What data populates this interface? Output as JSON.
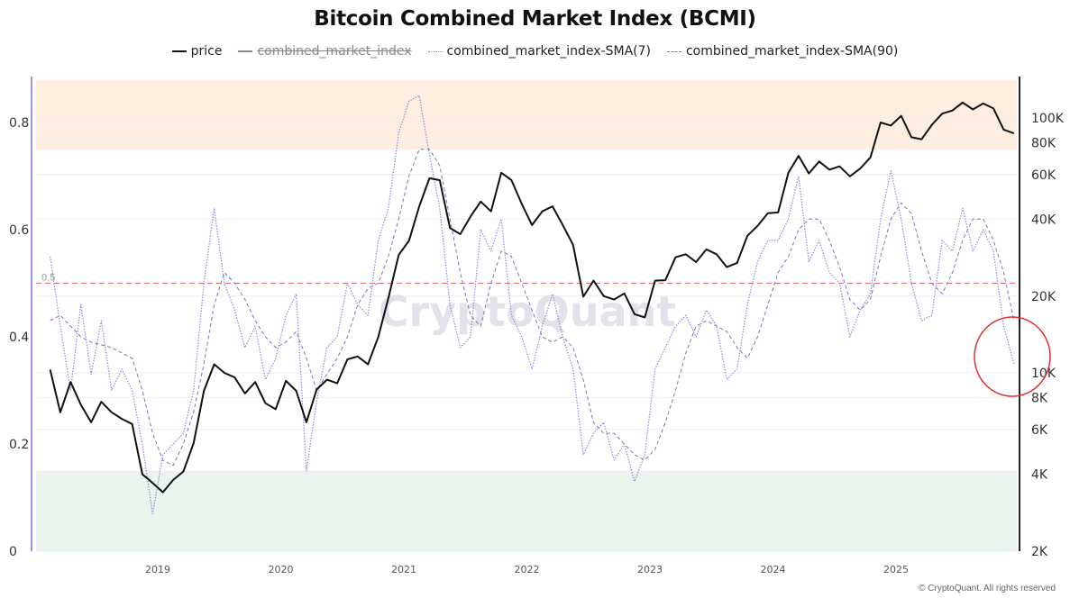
{
  "chart_data": {
    "type": "line",
    "title": "Bitcoin Combined Market Index (BCMI)",
    "legend": [
      {
        "name": "price",
        "color": "#111111",
        "style": "solid",
        "visible": true
      },
      {
        "name": "combined_market_index",
        "color": "#8888aa",
        "style": "solid",
        "visible": false
      },
      {
        "name": "combined_market_index-SMA(7)",
        "color": "#8f86e0",
        "style": "dotted",
        "visible": true
      },
      {
        "name": "combined_market_index-SMA(90)",
        "color": "#7a74c0",
        "style": "dashed",
        "visible": true
      }
    ],
    "legend_position": "top-center",
    "left_axis": {
      "ylim": [
        0,
        0.88
      ],
      "ticks": [
        "0",
        "0.2",
        "0.4",
        "0.6",
        "0.8"
      ]
    },
    "right_axis": {
      "scale": "log",
      "ylim": [
        2000,
        140000
      ],
      "ticks": [
        {
          "label": "2K",
          "value": 2000
        },
        {
          "label": "4K",
          "value": 4000
        },
        {
          "label": "6K",
          "value": 6000
        },
        {
          "label": "8K",
          "value": 8000
        },
        {
          "label": "10K",
          "value": 10000
        },
        {
          "label": "20K",
          "value": 20000
        },
        {
          "label": "40K",
          "value": 40000
        },
        {
          "label": "60K",
          "value": 60000
        },
        {
          "label": "80K",
          "value": 80000
        },
        {
          "label": "100K",
          "value": 100000
        }
      ]
    },
    "x_ticks": [
      "2019",
      "2020",
      "2021",
      "2022",
      "2023",
      "2024",
      "2025"
    ],
    "bands": [
      {
        "from": 0.75,
        "to": 0.88,
        "color": "#fdeee0"
      },
      {
        "from": 0,
        "to": 0.15,
        "color": "#e8f4ec"
      }
    ],
    "reference_line": {
      "value": 0.5,
      "label": "0.5",
      "color": "#e07070"
    },
    "annotation": {
      "type": "circle",
      "color": "#e03030",
      "at_date": "2025-12"
    },
    "grid": true,
    "dates": [
      "2018-02",
      "2018-03",
      "2018-04",
      "2018-05",
      "2018-06",
      "2018-07",
      "2018-08",
      "2018-09",
      "2018-10",
      "2018-11",
      "2018-12",
      "2019-01",
      "2019-02",
      "2019-03",
      "2019-04",
      "2019-05",
      "2019-06",
      "2019-07",
      "2019-08",
      "2019-09",
      "2019-10",
      "2019-11",
      "2019-12",
      "2020-01",
      "2020-02",
      "2020-03",
      "2020-04",
      "2020-05",
      "2020-06",
      "2020-07",
      "2020-08",
      "2020-09",
      "2020-10",
      "2020-11",
      "2020-12",
      "2021-01",
      "2021-02",
      "2021-03",
      "2021-04",
      "2021-05",
      "2021-06",
      "2021-07",
      "2021-08",
      "2021-09",
      "2021-10",
      "2021-11",
      "2021-12",
      "2022-01",
      "2022-02",
      "2022-03",
      "2022-04",
      "2022-05",
      "2022-06",
      "2022-07",
      "2022-08",
      "2022-09",
      "2022-10",
      "2022-11",
      "2022-12",
      "2023-01",
      "2023-02",
      "2023-03",
      "2023-04",
      "2023-05",
      "2023-06",
      "2023-07",
      "2023-08",
      "2023-09",
      "2023-10",
      "2023-11",
      "2023-12",
      "2024-01",
      "2024-02",
      "2024-03",
      "2024-04",
      "2024-05",
      "2024-06",
      "2024-07",
      "2024-08",
      "2024-09",
      "2024-10",
      "2024-11",
      "2024-12",
      "2025-01",
      "2025-02",
      "2025-03",
      "2025-04",
      "2025-05",
      "2025-06",
      "2025-07",
      "2025-08",
      "2025-09",
      "2025-10",
      "2025-11",
      "2025-12"
    ],
    "series": [
      {
        "name": "price",
        "axis": "right",
        "values": [
          10300,
          7000,
          9200,
          7500,
          6400,
          7700,
          7000,
          6600,
          6300,
          4000,
          3700,
          3400,
          3800,
          4100,
          5300,
          8500,
          10800,
          10000,
          9600,
          8300,
          9200,
          7600,
          7200,
          9300,
          8500,
          6400,
          8600,
          9400,
          9100,
          11300,
          11600,
          10800,
          13800,
          19700,
          29000,
          33000,
          45000,
          58000,
          57000,
          37000,
          35000,
          41000,
          47000,
          43000,
          61000,
          57000,
          46000,
          38000,
          43000,
          45000,
          38000,
          31800,
          19900,
          23000,
          20000,
          19400,
          20500,
          17000,
          16500,
          23000,
          23100,
          28400,
          29200,
          27200,
          30500,
          29200,
          26000,
          27000,
          34500,
          37700,
          42300,
          42600,
          61000,
          71000,
          60600,
          67500,
          62700,
          64600,
          59000,
          63300,
          70000,
          96000,
          93400,
          102000,
          84000,
          82500,
          94000,
          104000,
          107000,
          115000,
          108000,
          114000,
          109000,
          90000,
          87000
        ]
      },
      {
        "name": "combined_market_index-SMA(7)",
        "axis": "left",
        "values": [
          0.55,
          0.42,
          0.3,
          0.46,
          0.33,
          0.43,
          0.3,
          0.34,
          0.3,
          0.2,
          0.07,
          0.18,
          0.2,
          0.22,
          0.3,
          0.5,
          0.64,
          0.5,
          0.45,
          0.38,
          0.42,
          0.32,
          0.36,
          0.44,
          0.48,
          0.15,
          0.28,
          0.38,
          0.4,
          0.5,
          0.46,
          0.44,
          0.58,
          0.64,
          0.78,
          0.84,
          0.85,
          0.74,
          0.64,
          0.46,
          0.38,
          0.4,
          0.6,
          0.56,
          0.62,
          0.44,
          0.4,
          0.34,
          0.42,
          0.48,
          0.4,
          0.34,
          0.18,
          0.22,
          0.24,
          0.17,
          0.2,
          0.13,
          0.18,
          0.34,
          0.38,
          0.42,
          0.44,
          0.4,
          0.45,
          0.42,
          0.32,
          0.34,
          0.46,
          0.54,
          0.58,
          0.58,
          0.62,
          0.7,
          0.54,
          0.58,
          0.52,
          0.5,
          0.4,
          0.45,
          0.48,
          0.62,
          0.71,
          0.62,
          0.5,
          0.43,
          0.44,
          0.58,
          0.56,
          0.64,
          0.56,
          0.6,
          0.56,
          0.42,
          0.35
        ]
      },
      {
        "name": "combined_market_index-SMA(90)",
        "axis": "left",
        "values": [
          0.43,
          0.44,
          0.42,
          0.4,
          0.39,
          0.385,
          0.38,
          0.37,
          0.36,
          0.3,
          0.22,
          0.17,
          0.16,
          0.2,
          0.26,
          0.35,
          0.46,
          0.52,
          0.5,
          0.47,
          0.43,
          0.4,
          0.38,
          0.39,
          0.41,
          0.36,
          0.3,
          0.33,
          0.36,
          0.4,
          0.46,
          0.49,
          0.5,
          0.55,
          0.62,
          0.7,
          0.75,
          0.75,
          0.72,
          0.62,
          0.52,
          0.44,
          0.42,
          0.5,
          0.56,
          0.55,
          0.5,
          0.45,
          0.4,
          0.39,
          0.4,
          0.38,
          0.32,
          0.24,
          0.22,
          0.22,
          0.2,
          0.18,
          0.17,
          0.19,
          0.24,
          0.3,
          0.37,
          0.42,
          0.43,
          0.42,
          0.41,
          0.38,
          0.36,
          0.4,
          0.46,
          0.52,
          0.55,
          0.6,
          0.62,
          0.62,
          0.58,
          0.53,
          0.47,
          0.45,
          0.47,
          0.55,
          0.62,
          0.65,
          0.63,
          0.56,
          0.5,
          0.48,
          0.52,
          0.58,
          0.62,
          0.62,
          0.58,
          0.52,
          0.43
        ]
      }
    ]
  },
  "watermark": "CryptoQuant",
  "footer": "© CryptoQuant. All rights reserved"
}
